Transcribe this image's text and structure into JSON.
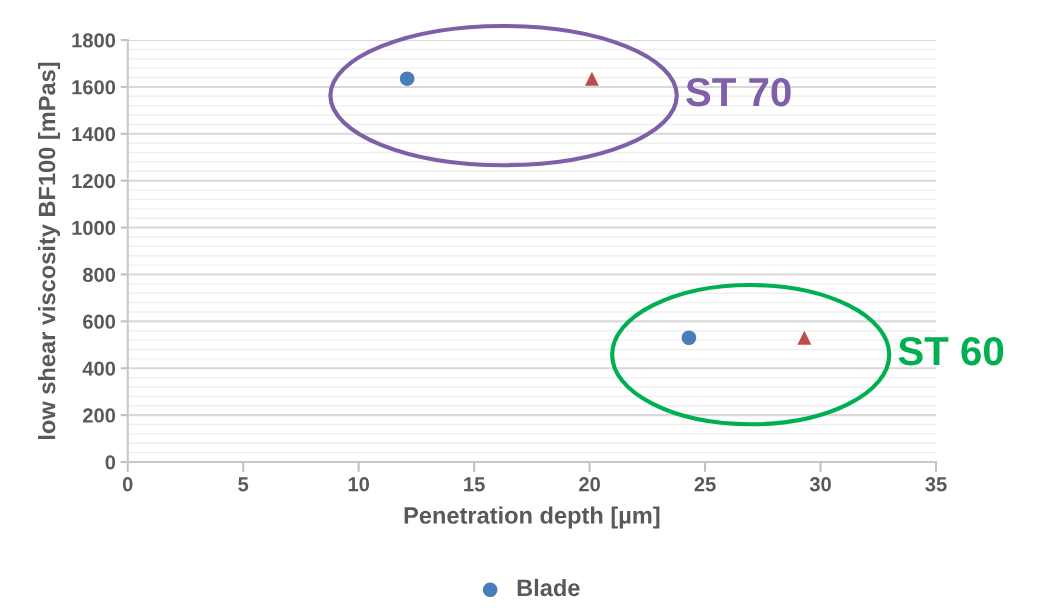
{
  "chart_data": {
    "type": "scatter",
    "xlabel": "Penetration depth [µm]",
    "ylabel": "low shear viscosity BF100 [mPas]",
    "xlim": [
      0,
      35
    ],
    "xticks": [
      0,
      5,
      10,
      15,
      20,
      25,
      30,
      35
    ],
    "ylim": [
      0,
      1800
    ],
    "yticks": [
      0,
      200,
      400,
      600,
      800,
      1000,
      1200,
      1400,
      1600,
      1800
    ],
    "grid": "y",
    "legend": "bottom",
    "series": [
      {
        "name": "Blade",
        "color": "#4a7ebb",
        "marker": "circle",
        "x": [
          12.1,
          24.3
        ],
        "values": [
          1635,
          530
        ]
      },
      {
        "color": "#be4b48",
        "marker": "triangle",
        "x": [
          20.1,
          29.3
        ],
        "values": [
          1635,
          530
        ]
      }
    ],
    "annotations": [
      "ST 70",
      "ST 60"
    ]
  }
}
